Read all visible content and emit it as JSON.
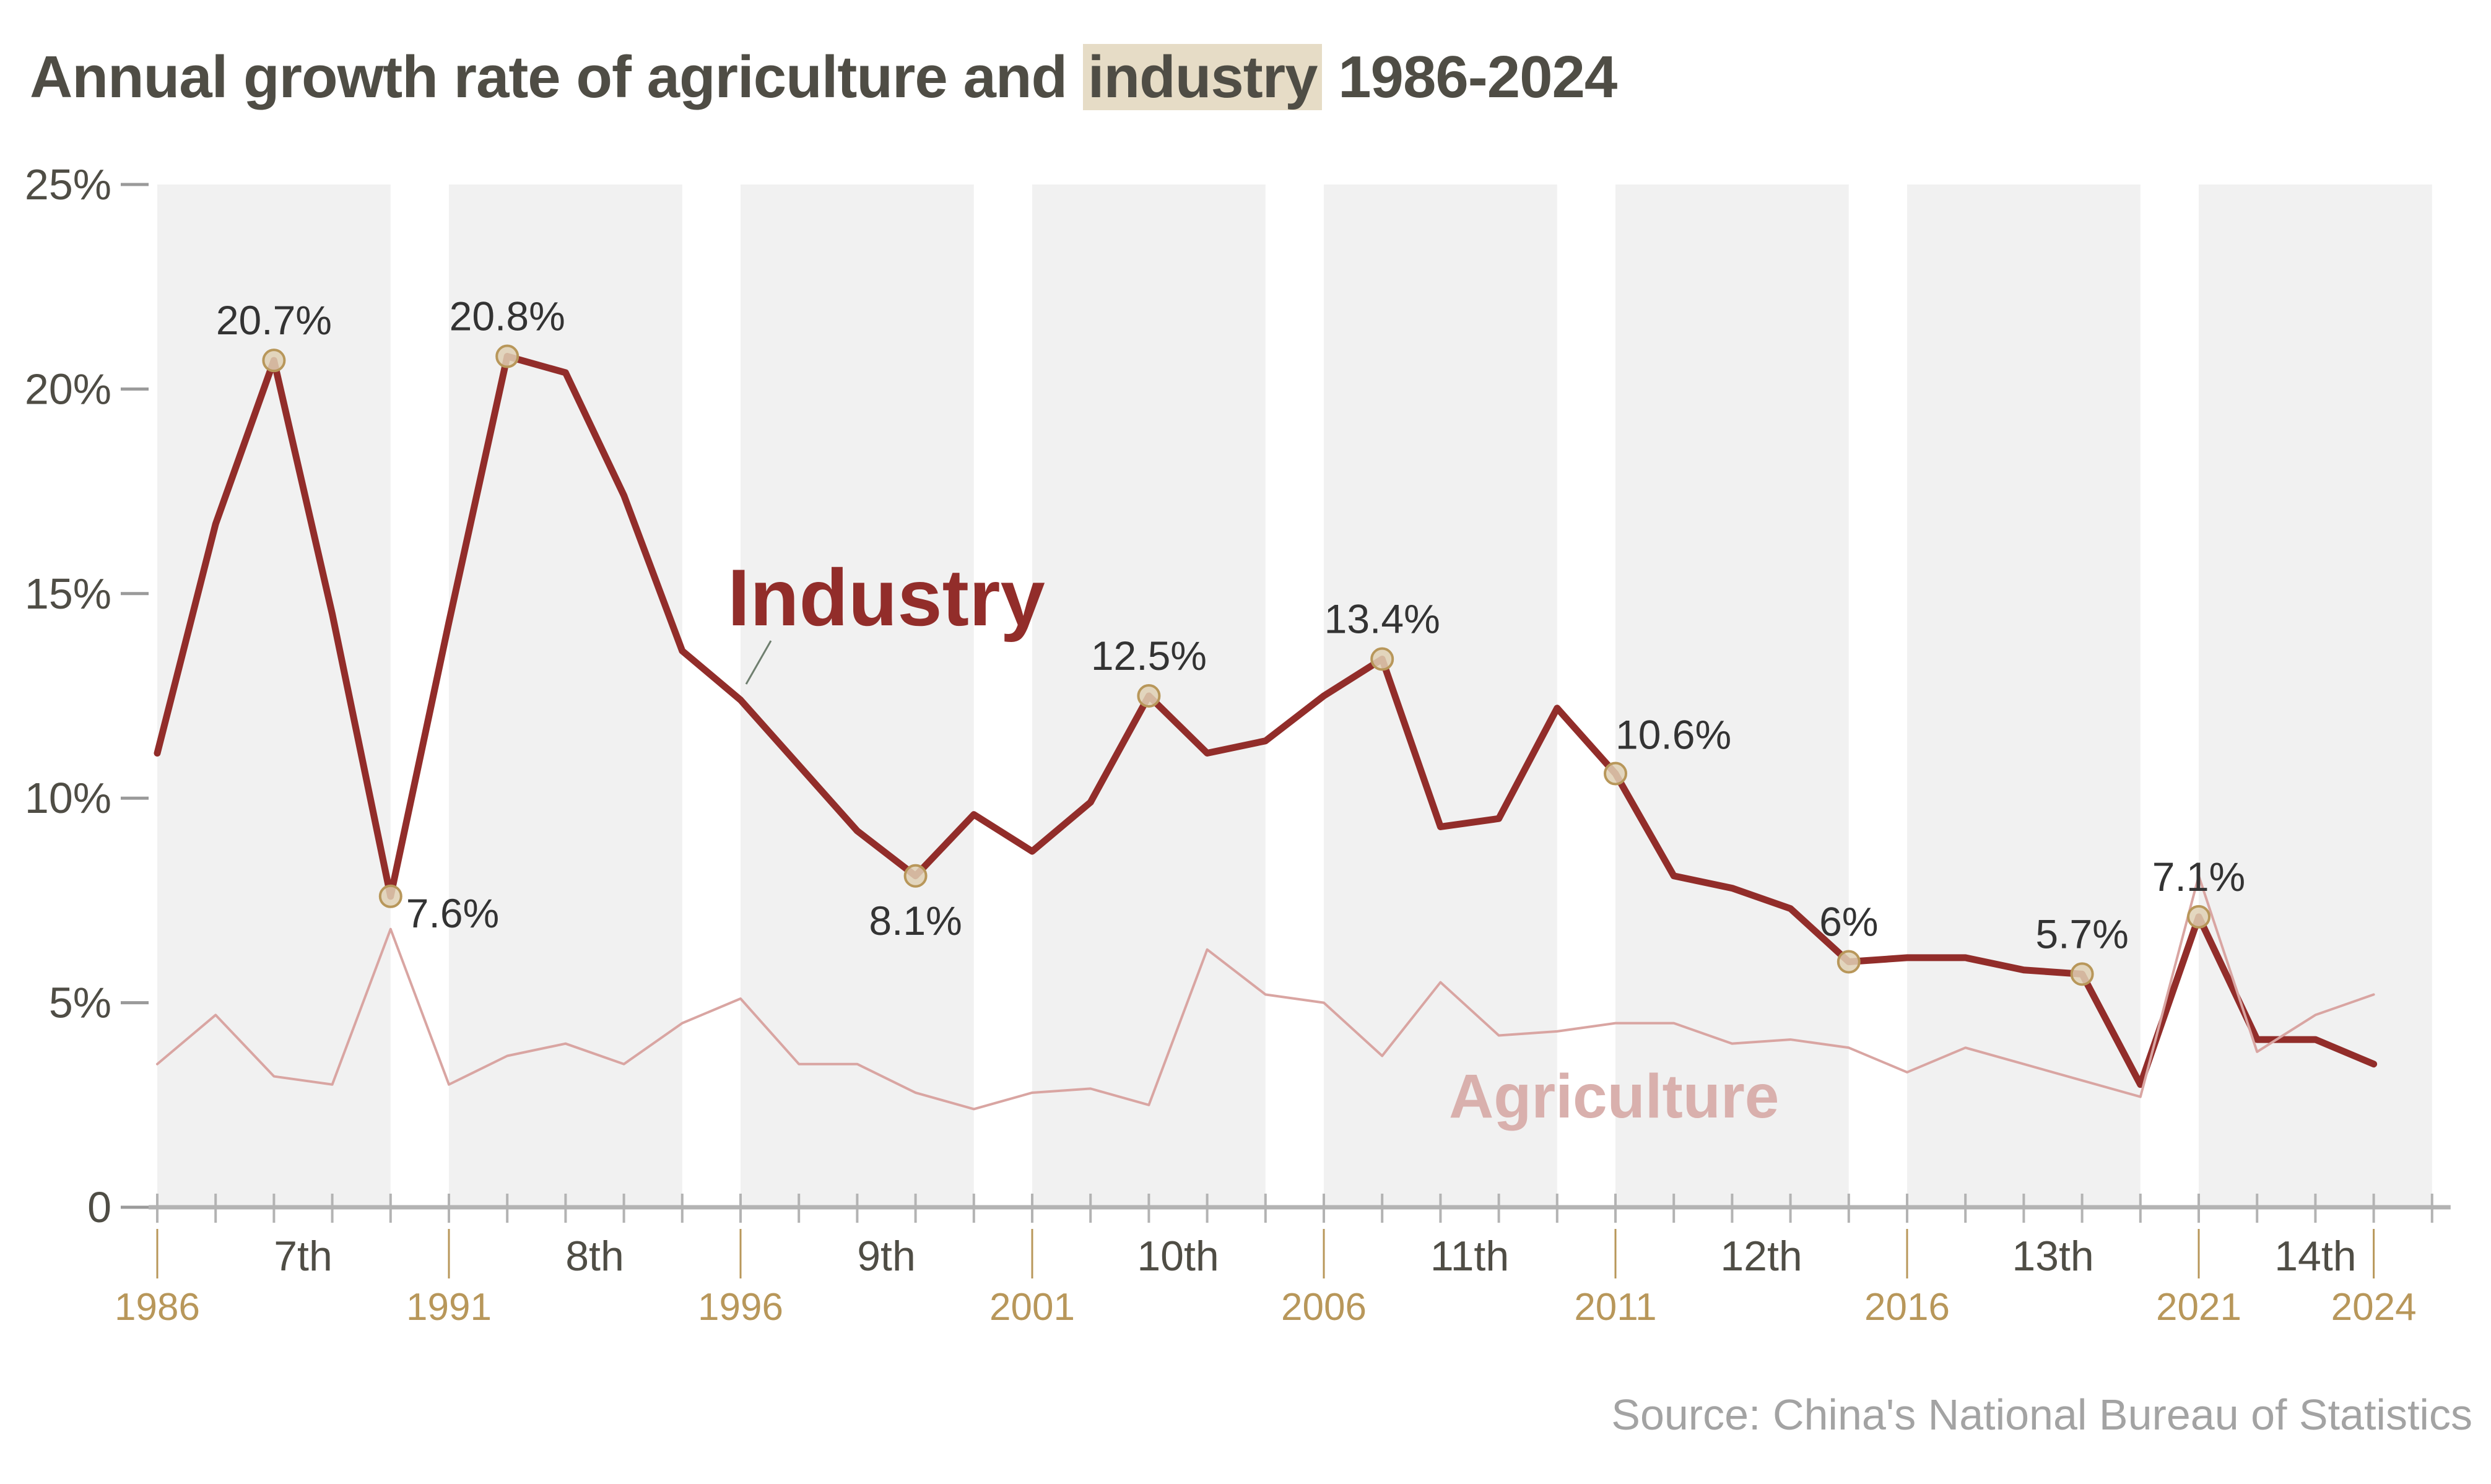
{
  "title": {
    "before": "Annual growth rate of agriculture and ",
    "highlight": "industry",
    "after": " 1986-2024"
  },
  "source": "Source: China's National Bureau of Statistics",
  "colors": {
    "industry": "#922d2a",
    "agriculture": "#d9a5a2",
    "band": "#f1f1f1",
    "marker_fill": "#dfd0b4",
    "marker_stroke": "#b8975a",
    "year_label": "#b8975a",
    "highlight": "#e6dcc6"
  },
  "chart_data": {
    "type": "line",
    "title": "Annual growth rate of agriculture and industry 1986-2024",
    "xlabel": "",
    "ylabel": "",
    "ylim": [
      0,
      25
    ],
    "xlim": [
      1986,
      2025
    ],
    "grid": false,
    "yticks": [
      0,
      5,
      10,
      15,
      20,
      25
    ],
    "ytick_labels": [
      "0",
      "5%",
      "10%",
      "15%",
      "20%",
      "25%"
    ],
    "year_labels": [
      1986,
      1991,
      1996,
      2001,
      2006,
      2011,
      2016,
      2021,
      2024
    ],
    "five_year_plans": [
      {
        "label": "7th",
        "start": 1986,
        "end": 1990
      },
      {
        "label": "8th",
        "start": 1991,
        "end": 1995
      },
      {
        "label": "9th",
        "start": 1996,
        "end": 2000
      },
      {
        "label": "10th",
        "start": 2001,
        "end": 2005
      },
      {
        "label": "11th",
        "start": 2006,
        "end": 2010
      },
      {
        "label": "12th",
        "start": 2011,
        "end": 2015
      },
      {
        "label": "13th",
        "start": 2016,
        "end": 2020
      },
      {
        "label": "14th",
        "start": 2021,
        "end": 2025
      }
    ],
    "x": [
      1986,
      1987,
      1988,
      1989,
      1990,
      1991,
      1992,
      1993,
      1994,
      1995,
      1996,
      1997,
      1998,
      1999,
      2000,
      2001,
      2002,
      2003,
      2004,
      2005,
      2006,
      2007,
      2008,
      2009,
      2010,
      2011,
      2012,
      2013,
      2014,
      2015,
      2016,
      2017,
      2018,
      2019,
      2020,
      2021,
      2022,
      2023,
      2024
    ],
    "series": [
      {
        "name": "Industry",
        "values": [
          11.1,
          16.7,
          20.7,
          14.5,
          7.6,
          14.3,
          20.8,
          20.4,
          17.4,
          13.6,
          12.4,
          10.8,
          9.2,
          8.1,
          9.6,
          8.7,
          9.9,
          12.5,
          11.1,
          11.4,
          12.5,
          13.4,
          9.3,
          9.5,
          12.2,
          10.6,
          8.1,
          7.8,
          7.3,
          6.0,
          6.1,
          6.1,
          5.8,
          5.7,
          3.0,
          7.1,
          4.1,
          4.1,
          3.5
        ]
      },
      {
        "name": "Agriculture",
        "values": [
          3.5,
          4.7,
          3.2,
          3.0,
          6.8,
          3.0,
          3.7,
          4.0,
          3.5,
          4.5,
          5.1,
          3.5,
          3.5,
          2.8,
          2.4,
          2.8,
          2.9,
          2.5,
          6.3,
          5.2,
          5.0,
          3.7,
          5.5,
          4.2,
          4.3,
          4.5,
          4.5,
          4.0,
          4.1,
          3.9,
          3.3,
          3.9,
          3.5,
          3.1,
          2.7,
          8.1,
          3.8,
          4.7,
          5.2
        ]
      }
    ],
    "annotations": [
      {
        "year": 1988,
        "value": 20.7,
        "label": "20.7%",
        "position": "above"
      },
      {
        "year": 1990,
        "value": 7.6,
        "label": "7.6%",
        "position": "right"
      },
      {
        "year": 1992,
        "value": 20.8,
        "label": "20.8%",
        "position": "above"
      },
      {
        "year": 1999,
        "value": 8.1,
        "label": "8.1%",
        "position": "below"
      },
      {
        "year": 2003,
        "value": 12.5,
        "label": "12.5%",
        "position": "above"
      },
      {
        "year": 2007,
        "value": 13.4,
        "label": "13.4%",
        "position": "above"
      },
      {
        "year": 2011,
        "value": 10.6,
        "label": "10.6%",
        "position": "above-right"
      },
      {
        "year": 2015,
        "value": 6.0,
        "label": "6%",
        "position": "above"
      },
      {
        "year": 2019,
        "value": 5.7,
        "label": "5.7%",
        "position": "above"
      },
      {
        "year": 2021,
        "value": 7.1,
        "label": "7.1%",
        "position": "above"
      }
    ],
    "series_labels": [
      {
        "name": "Industry",
        "text": "Industry"
      },
      {
        "name": "Agriculture",
        "text": "Agriculture"
      }
    ]
  }
}
